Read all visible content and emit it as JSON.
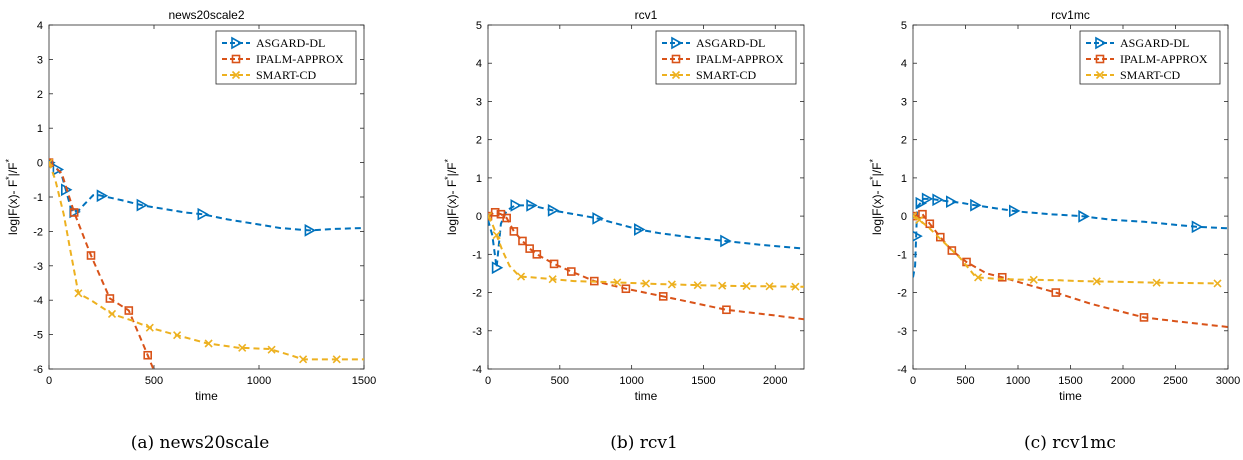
{
  "colors": {
    "asgard": "#0072BD",
    "ipalm": "#D95319",
    "smart": "#EDB120"
  },
  "legend": {
    "placement": "top-right",
    "entries": [
      {
        "key": "asgard",
        "label": "ASGARD-DL",
        "marker": "triangle-right"
      },
      {
        "key": "ipalm",
        "label": "IPALM-APPROX",
        "marker": "square"
      },
      {
        "key": "smart",
        "label": "SMART-CD",
        "marker": "x"
      }
    ]
  },
  "ylabel": "log|F(x)- F",
  "ylabel_sup1": "*",
  "ylabel_mid": "|/F",
  "ylabel_sup2": "*",
  "xlabel": "time",
  "chart_data": [
    {
      "type": "line",
      "title": "news20scale2",
      "caption": "(a) news20scale",
      "xlim": [
        0,
        1500
      ],
      "ylim": [
        -6,
        4
      ],
      "xticks": [
        0,
        500,
        1000,
        1500
      ],
      "yticks": [
        -6,
        -5,
        -4,
        -3,
        -2,
        -1,
        0,
        1,
        2,
        3,
        4
      ],
      "series": [
        {
          "key": "asgard",
          "x": [
            0,
            20,
            60,
            110,
            140,
            170,
            210,
            240,
            350,
            450,
            550,
            650,
            730,
            850,
            1000,
            1100,
            1200,
            1240,
            1350,
            1500
          ],
          "y": [
            0,
            -0.05,
            -0.35,
            -1.45,
            -1.4,
            -1.2,
            -0.95,
            -0.95,
            -1.1,
            -1.25,
            -1.35,
            -1.45,
            -1.5,
            -1.65,
            -1.8,
            -1.9,
            -1.95,
            -1.97,
            -1.93,
            -1.9
          ],
          "mx": [
            0,
            40,
            80,
            120,
            250,
            440,
            730,
            1240
          ]
        },
        {
          "key": "ipalm",
          "x": [
            0,
            60,
            120,
            200,
            290,
            380,
            470,
            500
          ],
          "y": [
            0,
            -0.3,
            -1.45,
            -2.7,
            -3.95,
            -4.3,
            -5.6,
            -6.05
          ],
          "mx": [
            0,
            120,
            200,
            290,
            380,
            470
          ]
        },
        {
          "key": "smart",
          "x": [
            0,
            30,
            70,
            100,
            140,
            200,
            300,
            400,
            480,
            600,
            750,
            900,
            1050,
            1150,
            1210,
            1300,
            1370,
            1450,
            1500
          ],
          "y": [
            0,
            -0.5,
            -1.5,
            -2.5,
            -3.8,
            -4.0,
            -4.4,
            -4.6,
            -4.8,
            -5.0,
            -5.25,
            -5.38,
            -5.42,
            -5.6,
            -5.72,
            -5.72,
            -5.72,
            -5.72,
            -5.72
          ],
          "mx": [
            0,
            140,
            300,
            480,
            610,
            760,
            920,
            1060,
            1210,
            1370
          ]
        }
      ]
    },
    {
      "type": "line",
      "title": "rcv1",
      "caption": "(b) rcv1",
      "xlim": [
        0,
        2200
      ],
      "ylim": [
        -4,
        5
      ],
      "xticks": [
        0,
        500,
        1000,
        1500,
        2000
      ],
      "yticks": [
        -4,
        -3,
        -2,
        -1,
        0,
        1,
        2,
        3,
        4,
        5
      ],
      "series": [
        {
          "key": "asgard",
          "x": [
            0,
            30,
            60,
            90,
            130,
            190,
            300,
            450,
            600,
            750,
            900,
            1050,
            1200,
            1400,
            1650,
            1900,
            2200
          ],
          "y": [
            -0.1,
            -0.5,
            -1.35,
            -0.2,
            0.15,
            0.28,
            0.28,
            0.15,
            0.05,
            -0.05,
            -0.2,
            -0.35,
            -0.45,
            -0.55,
            -0.65,
            -0.75,
            -0.85
          ],
          "mx": [
            60,
            190,
            300,
            450,
            760,
            1050,
            1650
          ]
        },
        {
          "key": "ipalm",
          "x": [
            0,
            50,
            90,
            130,
            180,
            240,
            290,
            340,
            460,
            580,
            740,
            960,
            1220,
            1660,
            2000,
            2200
          ],
          "y": [
            0,
            0.1,
            0.05,
            -0.05,
            -0.4,
            -0.65,
            -0.85,
            -1.0,
            -1.25,
            -1.45,
            -1.7,
            -1.9,
            -2.1,
            -2.45,
            -2.6,
            -2.7
          ],
          "mx": [
            0,
            50,
            90,
            130,
            180,
            240,
            290,
            340,
            460,
            580,
            740,
            960,
            1220,
            1660
          ]
        },
        {
          "key": "smart",
          "x": [
            0,
            30,
            60,
            100,
            150,
            220,
            300,
            450,
            600,
            800,
            1000,
            1200,
            1400,
            1600,
            1800,
            2000,
            2200
          ],
          "y": [
            0,
            -0.2,
            -0.5,
            -0.9,
            -1.3,
            -1.58,
            -1.6,
            -1.65,
            -1.7,
            -1.72,
            -1.75,
            -1.78,
            -1.8,
            -1.82,
            -1.83,
            -1.84,
            -1.85
          ],
          "mx": [
            0,
            60,
            230,
            450,
            900,
            1100,
            1280,
            1460,
            1630,
            1800,
            1960,
            2140
          ]
        }
      ]
    },
    {
      "type": "line",
      "title": "rcv1mc",
      "caption": "(c) rcv1mc",
      "xlim": [
        0,
        3000
      ],
      "ylim": [
        -4,
        5
      ],
      "xticks": [
        0,
        500,
        1000,
        1500,
        2000,
        2500,
        3000
      ],
      "yticks": [
        -4,
        -3,
        -2,
        -1,
        0,
        1,
        2,
        3,
        4,
        5
      ],
      "series": [
        {
          "key": "asgard",
          "x": [
            0,
            20,
            40,
            60,
            100,
            170,
            250,
            350,
            450,
            600,
            800,
            1000,
            1300,
            1600,
            1900,
            2200,
            2700,
            3000
          ],
          "y": [
            -1.6,
            -1.3,
            0.25,
            0.3,
            0.45,
            0.45,
            0.42,
            0.38,
            0.35,
            0.28,
            0.2,
            0.12,
            0.05,
            0.0,
            -0.1,
            -0.15,
            -0.28,
            -0.32
          ],
          "mx": [
            30,
            70,
            130,
            230,
            360,
            590,
            960,
            1620,
            2700
          ]
        },
        {
          "key": "ipalm",
          "x": [
            0,
            50,
            90,
            160,
            260,
            370,
            510,
            700,
            850,
            1100,
            1360,
            1700,
            2200,
            2500,
            3000
          ],
          "y": [
            0,
            0.0,
            0.05,
            -0.2,
            -0.55,
            -0.9,
            -1.2,
            -1.5,
            -1.6,
            -1.8,
            -2.0,
            -2.3,
            -2.65,
            -2.75,
            -2.9
          ],
          "mx": [
            0,
            90,
            160,
            260,
            370,
            510,
            850,
            1360,
            2200
          ]
        },
        {
          "key": "smart",
          "x": [
            0,
            30,
            60,
            150,
            300,
            450,
            600,
            800,
            1000,
            1200,
            1400,
            1600,
            1800,
            2000,
            2300,
            2600,
            2900
          ],
          "y": [
            0,
            -0.05,
            -0.1,
            -0.3,
            -0.7,
            -1.1,
            -1.6,
            -1.64,
            -1.66,
            -1.67,
            -1.68,
            -1.7,
            -1.71,
            -1.72,
            -1.74,
            -1.75,
            -1.76
          ],
          "mx": [
            0,
            60,
            620,
            1150,
            1750,
            2320,
            2900
          ]
        }
      ]
    }
  ]
}
